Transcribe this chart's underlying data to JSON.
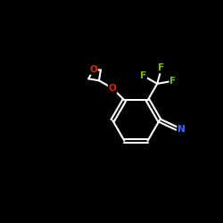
{
  "background_color": "#000000",
  "bond_color": "#ffffff",
  "atom_colors": {
    "F": "#7FBF00",
    "O": "#dd2200",
    "N": "#4466ff",
    "C": "#ffffff"
  },
  "figsize": [
    2.5,
    2.5
  ],
  "dpi": 100,
  "xlim": [
    0,
    10
  ],
  "ylim": [
    0,
    10
  ]
}
